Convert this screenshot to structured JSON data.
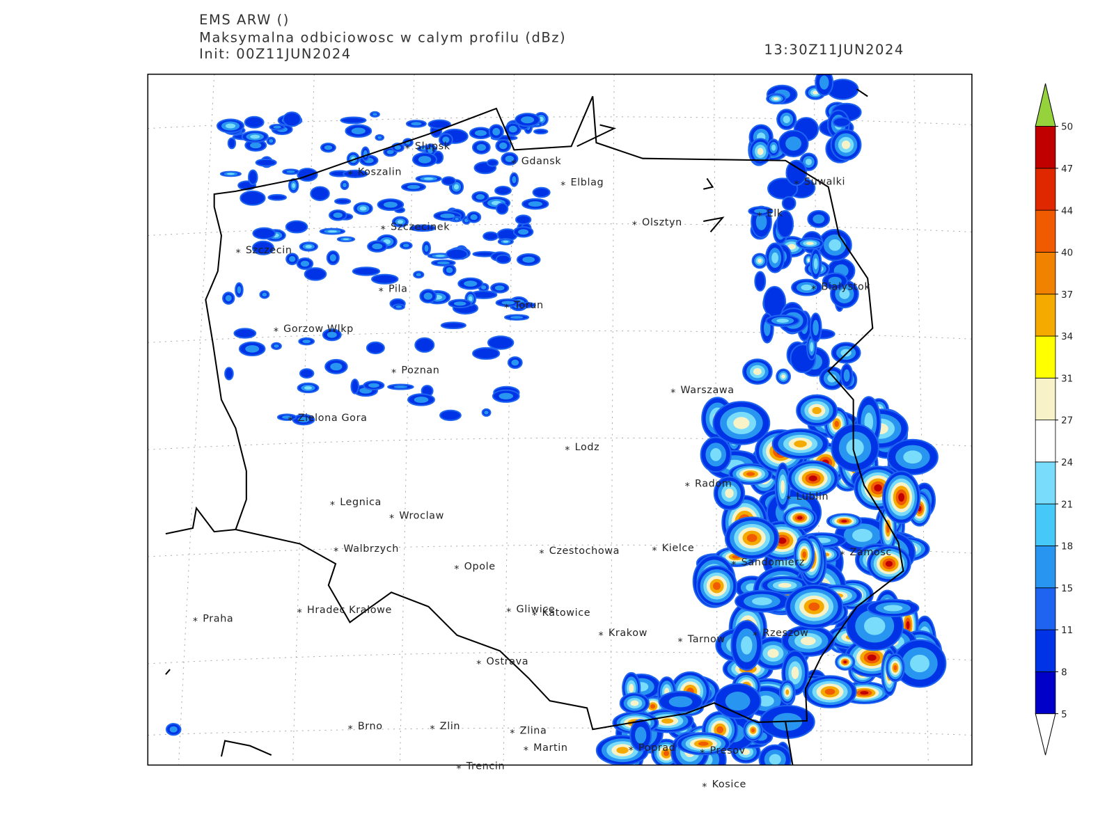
{
  "header": {
    "model": "EMS ARW ()",
    "field": "Maksymalna odbiciowosc w calym profilu (dBz)",
    "init": "Init: 00Z11JUN2024",
    "valid": "13:30Z11JUN2024"
  },
  "cities": [
    "Slupsk",
    "Koszalin",
    "Gdansk",
    "Elblag",
    "Suwalki",
    "Elk",
    "Olsztyn",
    "Szczecinek",
    "Szczecin",
    "Bialystok",
    "Pila",
    "Torun",
    "Gorzow Wlkp",
    "Poznan",
    "Warszawa",
    "Zielona Gora",
    "Lodz",
    "Radom",
    "Lublin",
    "Legnica",
    "Wroclaw",
    "Walbrzych",
    "Czestochowa",
    "Kielce",
    "Zamosc",
    "Sandomierz",
    "Opole",
    "Praha",
    "Hradec Kralowe",
    "Gliwice",
    "Katowice",
    "Krakow",
    "Tarnow",
    "Rzeszow",
    "Ostrava",
    "Brno",
    "Zlin",
    "Zlina",
    "Martin",
    "Poprad",
    "Presov",
    "Trencin",
    "Kosice"
  ],
  "colorbar": {
    "ticks": [
      5,
      8,
      11,
      15,
      18,
      21,
      24,
      27,
      31,
      34,
      37,
      40,
      44,
      47,
      50
    ],
    "colors": [
      "#0000c8",
      "#0032e6",
      "#1e64f0",
      "#2896f0",
      "#46c8f8",
      "#78dcfa",
      "#ffffff",
      "#f8f2c8",
      "#ffff00",
      "#f5aa00",
      "#f08200",
      "#f05a00",
      "#e02800",
      "#c00000"
    ],
    "under_color": "#ffffff",
    "over_color": "#96d23c"
  }
}
